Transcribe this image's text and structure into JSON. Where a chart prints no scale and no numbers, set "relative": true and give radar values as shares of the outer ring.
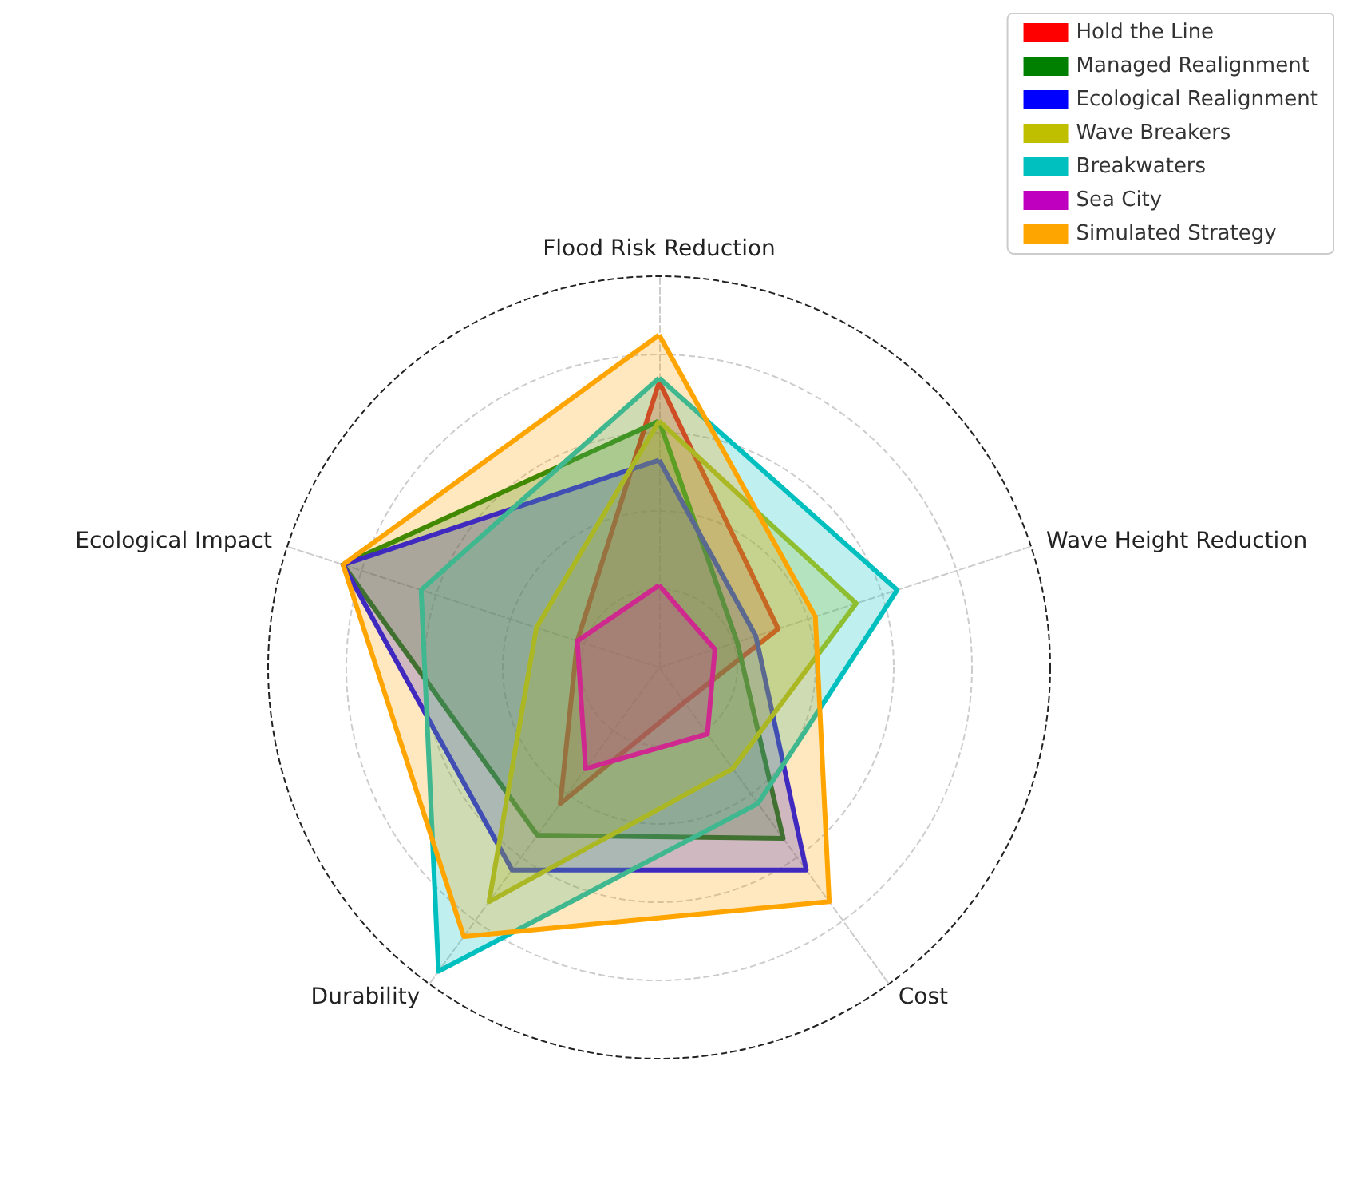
{
  "chart_data": {
    "type": "radar",
    "relative": true,
    "categories": [
      "Flood Risk Reduction",
      "Wave Height Reduction",
      "Cost",
      "Durability",
      "Ecological Impact"
    ],
    "series": [
      {
        "name": "Hold the Line",
        "color": "#ff0000",
        "values": [
          0.73,
          0.32,
          0.11,
          0.43,
          0.22
        ]
      },
      {
        "name": "Managed Realignment",
        "color": "#008000",
        "values": [
          0.63,
          0.21,
          0.54,
          0.53,
          0.85
        ]
      },
      {
        "name": "Ecological Realignment",
        "color": "#0000ff",
        "values": [
          0.53,
          0.26,
          0.64,
          0.64,
          0.85
        ]
      },
      {
        "name": "Wave Breakers",
        "color": "#bfbf00",
        "values": [
          0.63,
          0.53,
          0.32,
          0.74,
          0.33
        ]
      },
      {
        "name": "Breakwaters",
        "color": "#00bfbf",
        "values": [
          0.74,
          0.64,
          0.43,
          0.96,
          0.64
        ]
      },
      {
        "name": "Sea City",
        "color": "#bf00bf",
        "values": [
          0.21,
          0.15,
          0.21,
          0.32,
          0.22
        ]
      },
      {
        "name": "Simulated Strategy",
        "color": "#ffa500",
        "values": [
          0.85,
          0.42,
          0.74,
          0.85,
          0.85
        ]
      }
    ],
    "grid": true,
    "legend": "top right",
    "marker": "none"
  }
}
